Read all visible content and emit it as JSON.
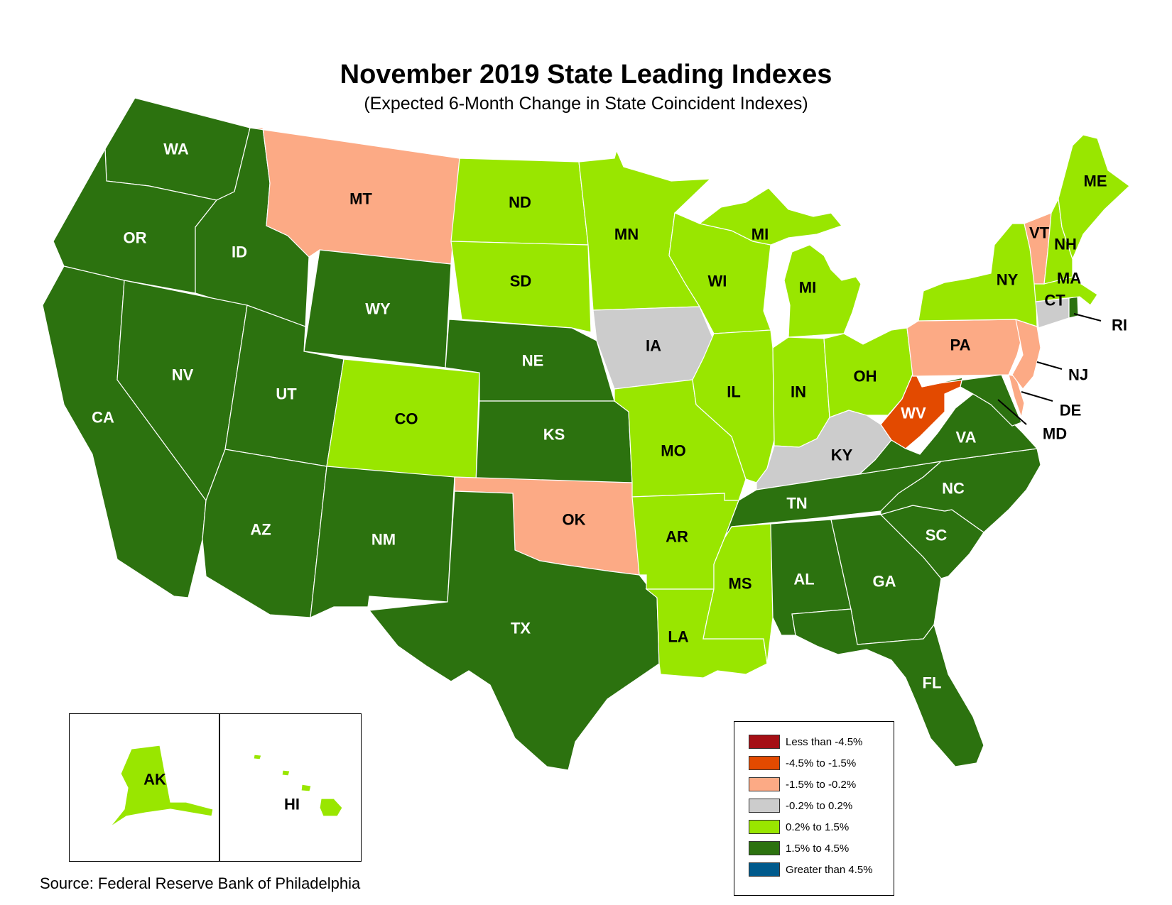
{
  "title": "November 2019 State Leading Indexes",
  "subtitle": "(Expected 6-Month Change in State Coincident Indexes)",
  "source": "Source: Federal Reserve Bank of Philadelphia",
  "categories": {
    "lt_neg4_5": {
      "label": "Less than -4.5%",
      "color": "#a50f15"
    },
    "neg4_5_neg1_5": {
      "label": "-4.5% to -1.5%",
      "color": "#e34a00"
    },
    "neg1_5_neg0_2": {
      "label": "-1.5% to -0.2%",
      "color": "#fcaa85"
    },
    "neg0_2_0_2": {
      "label": "-0.2% to 0.2%",
      "color": "#cccccc"
    },
    "p0_2_1_5": {
      "label": "0.2% to 1.5%",
      "color": "#99e600"
    },
    "p1_5_4_5": {
      "label": "1.5% to 4.5%",
      "color": "#2c720f"
    },
    "gt_4_5": {
      "label": "Greater than 4.5%",
      "color": "#005a8c"
    }
  },
  "legend_order": [
    "lt_neg4_5",
    "neg4_5_neg1_5",
    "neg1_5_neg0_2",
    "neg0_2_0_2",
    "p0_2_1_5",
    "p1_5_4_5",
    "gt_4_5"
  ],
  "states": {
    "WA": "p1_5_4_5",
    "OR": "p1_5_4_5",
    "CA": "p1_5_4_5",
    "ID": "p1_5_4_5",
    "NV": "p1_5_4_5",
    "MT": "neg1_5_neg0_2",
    "WY": "p1_5_4_5",
    "UT": "p1_5_4_5",
    "AZ": "p1_5_4_5",
    "CO": "p0_2_1_5",
    "NM": "p1_5_4_5",
    "ND": "p0_2_1_5",
    "SD": "p0_2_1_5",
    "NE": "p1_5_4_5",
    "KS": "p1_5_4_5",
    "OK": "neg1_5_neg0_2",
    "TX": "p1_5_4_5",
    "MN": "p0_2_1_5",
    "IA": "neg0_2_0_2",
    "MO": "p0_2_1_5",
    "AR": "p0_2_1_5",
    "LA": "p0_2_1_5",
    "WI": "p0_2_1_5",
    "IL": "p0_2_1_5",
    "MI": "p0_2_1_5",
    "IN": "p0_2_1_5",
    "OH": "p0_2_1_5",
    "KY": "neg0_2_0_2",
    "TN": "p1_5_4_5",
    "MS": "p0_2_1_5",
    "AL": "p1_5_4_5",
    "GA": "p1_5_4_5",
    "FL": "p1_5_4_5",
    "SC": "p1_5_4_5",
    "NC": "p1_5_4_5",
    "VA": "p1_5_4_5",
    "WV": "neg4_5_neg1_5",
    "PA": "neg1_5_neg0_2",
    "NY": "p0_2_1_5",
    "VT": "neg1_5_neg0_2",
    "NH": "p0_2_1_5",
    "ME": "p0_2_1_5",
    "MA": "p0_2_1_5",
    "CT": "neg0_2_0_2",
    "RI": "p1_5_4_5",
    "NJ": "neg1_5_neg0_2",
    "DE": "neg1_5_neg0_2",
    "MD": "p1_5_4_5",
    "AK": "p0_2_1_5",
    "HI": "p0_2_1_5"
  },
  "labels": {
    "WA": "WA",
    "OR": "OR",
    "CA": "CA",
    "ID": "ID",
    "NV": "NV",
    "MT": "MT",
    "WY": "WY",
    "UT": "UT",
    "AZ": "AZ",
    "CO": "CO",
    "NM": "NM",
    "ND": "ND",
    "SD": "SD",
    "NE": "NE",
    "KS": "KS",
    "OK": "OK",
    "TX": "TX",
    "MN": "MN",
    "IA": "IA",
    "MO": "MO",
    "AR": "AR",
    "LA": "LA",
    "WI": "WI",
    "IL": "IL",
    "MI": "MI",
    "MI_UP": "MI",
    "IN": "IN",
    "OH": "OH",
    "KY": "KY",
    "TN": "TN",
    "MS": "MS",
    "AL": "AL",
    "GA": "GA",
    "FL": "FL",
    "SC": "SC",
    "NC": "NC",
    "VA": "VA",
    "WV": "WV",
    "PA": "PA",
    "NY": "NY",
    "VT": "VT",
    "NH": "NH",
    "ME": "ME",
    "MA": "MA",
    "CT": "CT",
    "RI": "RI",
    "NJ": "NJ",
    "DE": "DE",
    "MD": "MD",
    "AK": "AK",
    "HI": "HI"
  }
}
